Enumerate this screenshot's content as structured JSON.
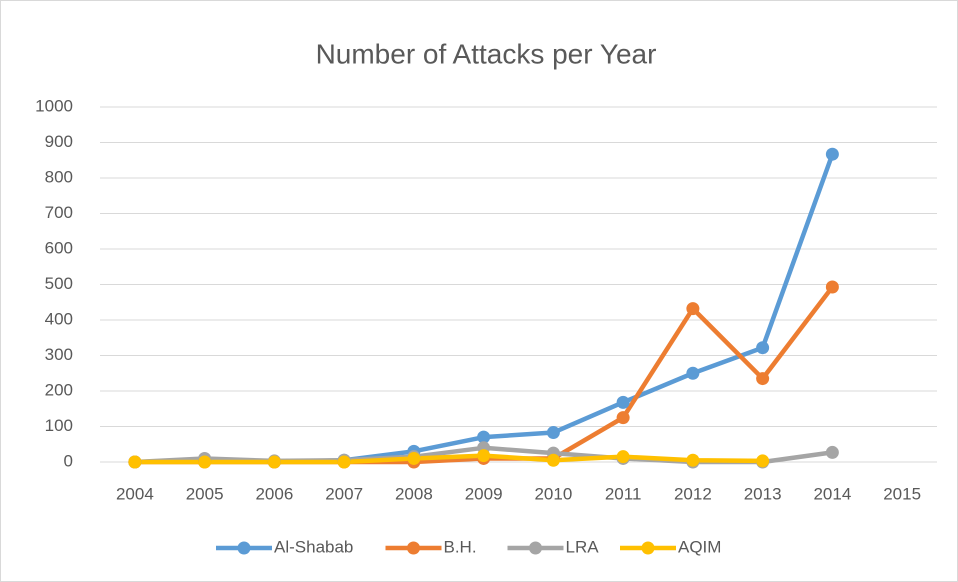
{
  "chart_data": {
    "type": "line",
    "title": "Number of Attacks per Year",
    "categories": [
      "2004",
      "2005",
      "2006",
      "2007",
      "2008",
      "2009",
      "2010",
      "2011",
      "2012",
      "2013",
      "2014",
      "2015"
    ],
    "series": [
      {
        "name": "Al-Shabab",
        "color": "#5b9bd5",
        "values": [
          0,
          5,
          0,
          5,
          30,
          70,
          83,
          168,
          250,
          322,
          867,
          null
        ]
      },
      {
        "name": "B.H.",
        "color": "#ed7d31",
        "values": [
          0,
          0,
          0,
          0,
          0,
          10,
          10,
          125,
          432,
          235,
          493,
          null
        ]
      },
      {
        "name": "LRA",
        "color": "#a5a5a5",
        "values": [
          0,
          10,
          3,
          5,
          15,
          40,
          25,
          10,
          0,
          0,
          27,
          null
        ]
      },
      {
        "name": "AQIM",
        "color": "#ffc000",
        "values": [
          0,
          0,
          0,
          0,
          10,
          18,
          5,
          15,
          5,
          3,
          null,
          null
        ]
      }
    ],
    "ylim": [
      0,
      1000
    ],
    "yticks": [
      0,
      100,
      200,
      300,
      400,
      500,
      600,
      700,
      800,
      900,
      1000
    ],
    "grid": true,
    "legend": "bottom"
  }
}
